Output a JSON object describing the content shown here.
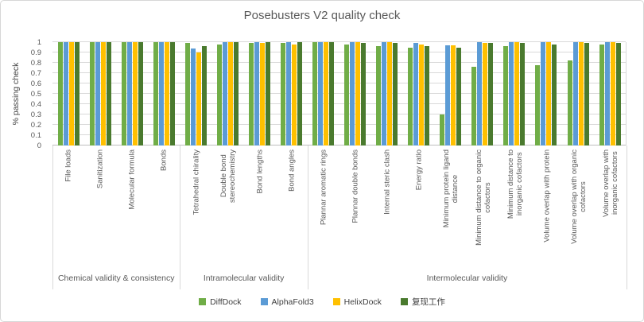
{
  "chart_data": {
    "type": "bar",
    "title": "Posebusters V2 quality check",
    "ylabel": "% passing check",
    "ylim": [
      0,
      1
    ],
    "ytick_step": 0.1,
    "yticks_top_to_bottom": [
      "1",
      "0.9",
      "0.8",
      "0.7",
      "0.6",
      "0.5",
      "0.4",
      "0.3",
      "0.2",
      "0.1",
      "0"
    ],
    "grid": true,
    "legend_position": "bottom",
    "colors": {
      "gridline": "#d9d9d9",
      "axis_line": "#bfbfbf",
      "text": "#595959",
      "title": "#595959"
    },
    "groups": [
      {
        "label": "Chemical validity & consistency",
        "categories": [
          "File loads",
          "Sanitization",
          "Molecular formula",
          "Bonds"
        ]
      },
      {
        "label": "Intramolecular validity",
        "categories": [
          "Tetrahedral chirality",
          "Double bond\nstereochemistry",
          "Bond lengths",
          "Bond angles"
        ]
      },
      {
        "label": "Intermolecular validity",
        "categories": [
          "Plannar aromatic rings",
          "Plannar double bonds",
          "Internal steric clash",
          "Energy ratio",
          "Minimum protein ligand\ndistance",
          "Minimum distance to organic\ncofactors",
          "Minimum distance to\ninorganic cofactors",
          "Volume overlap with protein",
          "Volume overlap with organic\ncofactors",
          "Volume overlap with\ninorganic cofactors"
        ]
      }
    ],
    "series": [
      {
        "name": "DiffDock",
        "color": "#70ad47",
        "values": [
          1,
          1,
          1,
          1,
          0.99,
          0.98,
          0.99,
          0.99,
          1,
          0.98,
          0.96,
          0.95,
          0.3,
          0.76,
          0.96,
          0.78,
          0.82,
          0.98
        ]
      },
      {
        "name": "AlphaFold3",
        "color": "#5b9bd5",
        "values": [
          1,
          1,
          1,
          1,
          0.94,
          1,
          1,
          1,
          1,
          1,
          1,
          0.99,
          0.97,
          1,
          1,
          1,
          1,
          1
        ]
      },
      {
        "name": "HelixDock",
        "color": "#ffc000",
        "values": [
          1,
          1,
          1,
          1,
          0.9,
          1,
          0.99,
          0.98,
          1,
          1,
          1,
          0.98,
          0.97,
          0.99,
          1,
          1,
          1,
          1
        ]
      },
      {
        "name": "复现工作",
        "color": "#4a7a2e",
        "values": [
          1,
          1,
          1,
          1,
          0.96,
          1,
          1,
          1,
          1,
          0.99,
          0.99,
          0.96,
          0.95,
          0.99,
          0.99,
          0.98,
          0.99,
          0.99
        ]
      }
    ]
  }
}
